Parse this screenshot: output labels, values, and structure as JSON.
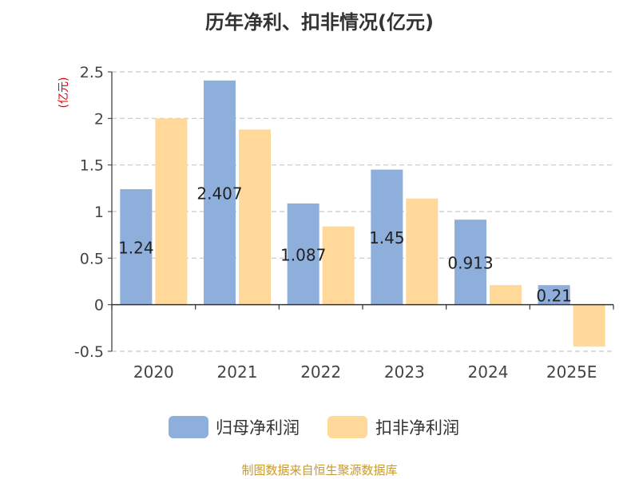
{
  "title": "历年净利、扣非情况(亿元)",
  "source": "制图数据来自恒生聚源数据库",
  "chart_data": {
    "type": "bar",
    "title": "历年净利、扣非情况(亿元)",
    "categories": [
      "2020",
      "2021",
      "2022",
      "2023",
      "2024",
      "2025E"
    ],
    "ylabel": "(亿元)",
    "ylim": [
      -0.5,
      2.5
    ],
    "yticks": [
      -0.5,
      0,
      0.5,
      1,
      1.5,
      2,
      2.5
    ],
    "ytick_labels": [
      "-0.5",
      "0",
      "0.5",
      "1",
      "1.5",
      "2",
      "2.5"
    ],
    "grid": true,
    "legend_position": "bottom",
    "series": [
      {
        "name": "归母净利润",
        "color": "#8eaedb",
        "values": [
          1.24,
          2.407,
          1.087,
          1.45,
          0.913,
          0.21
        ],
        "data_labels": [
          "1.24",
          "2.407",
          "1.087",
          "1.45",
          "0.913",
          "0.21"
        ]
      },
      {
        "name": "扣非净利润",
        "color": "#ffd89a",
        "values": [
          2.0,
          1.88,
          0.84,
          1.14,
          0.21,
          -0.45
        ]
      }
    ]
  }
}
